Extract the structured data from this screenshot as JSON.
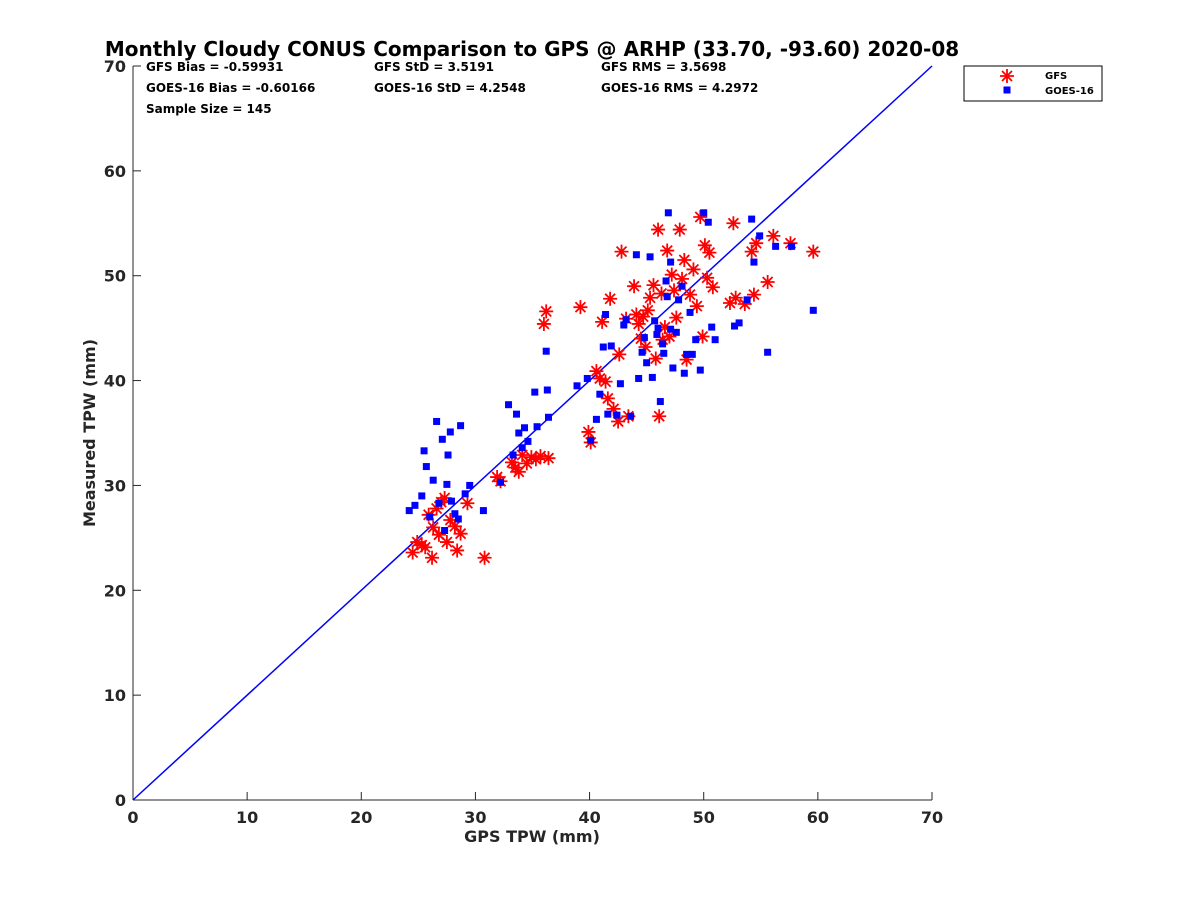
{
  "chart_data": {
    "type": "scatter",
    "title": "Monthly Cloudy CONUS Comparison to GPS @ ARHP (33.70, -93.60) 2020-08",
    "xlabel": "GPS TPW (mm)",
    "ylabel": "Measured TPW (mm)",
    "xlim": [
      0,
      70
    ],
    "ylim": [
      0,
      70
    ],
    "xticks": [
      0,
      10,
      20,
      30,
      40,
      50,
      60,
      70
    ],
    "yticks": [
      0,
      10,
      20,
      30,
      40,
      50,
      60,
      70
    ],
    "grid": false,
    "legend_position": "top-right",
    "stats": [
      "GFS Bias = -0.59931",
      "GFS StD = 3.5191",
      "GFS RMS = 3.5698",
      "GOES-16 Bias = -0.60166",
      "GOES-16 StD = 4.2548",
      "GOES-16 RMS = 4.2972",
      "Sample Size = 145"
    ],
    "reference_line": {
      "x": [
        0,
        70
      ],
      "y": [
        0,
        70
      ],
      "color": "#0000ff"
    },
    "series": [
      {
        "name": "GFS",
        "marker": "asterisk",
        "color": "#ff0000",
        "points": [
          [
            24.5,
            23.6
          ],
          [
            24.9,
            24.6
          ],
          [
            25.3,
            24.3
          ],
          [
            25.6,
            24.1
          ],
          [
            25.9,
            27.2
          ],
          [
            26.2,
            23.1
          ],
          [
            26.3,
            26.0
          ],
          [
            26.6,
            27.8
          ],
          [
            26.8,
            25.3
          ],
          [
            27.0,
            28.4
          ],
          [
            27.3,
            28.8
          ],
          [
            27.5,
            24.6
          ],
          [
            27.8,
            26.7
          ],
          [
            28.2,
            26.1
          ],
          [
            28.4,
            23.8
          ],
          [
            28.7,
            25.4
          ],
          [
            29.3,
            28.3
          ],
          [
            30.8,
            23.1
          ],
          [
            31.9,
            30.8
          ],
          [
            32.2,
            30.4
          ],
          [
            33.2,
            32.2
          ],
          [
            33.5,
            31.7
          ],
          [
            33.8,
            31.3
          ],
          [
            34.1,
            32.9
          ],
          [
            34.5,
            32.1
          ],
          [
            34.9,
            32.7
          ],
          [
            35.3,
            32.5
          ],
          [
            35.7,
            32.8
          ],
          [
            36.0,
            45.4
          ],
          [
            36.2,
            46.6
          ],
          [
            36.4,
            32.6
          ],
          [
            39.2,
            47.0
          ],
          [
            39.9,
            35.1
          ],
          [
            40.1,
            34.1
          ],
          [
            40.6,
            40.9
          ],
          [
            40.9,
            40.2
          ],
          [
            41.1,
            45.6
          ],
          [
            41.4,
            39.9
          ],
          [
            41.6,
            38.3
          ],
          [
            41.8,
            47.8
          ],
          [
            42.1,
            37.3
          ],
          [
            42.5,
            36.1
          ],
          [
            42.8,
            52.3
          ],
          [
            42.6,
            42.5
          ],
          [
            43.2,
            45.9
          ],
          [
            43.4,
            36.6
          ],
          [
            43.9,
            49.0
          ],
          [
            44.1,
            46.3
          ],
          [
            44.3,
            45.4
          ],
          [
            44.5,
            44.0
          ],
          [
            44.7,
            46.1
          ],
          [
            44.9,
            43.2
          ],
          [
            45.1,
            46.7
          ],
          [
            45.3,
            47.9
          ],
          [
            45.6,
            49.1
          ],
          [
            45.8,
            42.1
          ],
          [
            46.0,
            54.4
          ],
          [
            46.1,
            36.6
          ],
          [
            46.3,
            48.3
          ],
          [
            46.6,
            45.1
          ],
          [
            46.8,
            52.4
          ],
          [
            47.0,
            44.2
          ],
          [
            47.2,
            50.1
          ],
          [
            47.4,
            48.6
          ],
          [
            47.6,
            46.0
          ],
          [
            47.9,
            54.4
          ],
          [
            48.1,
            49.7
          ],
          [
            48.3,
            51.5
          ],
          [
            48.5,
            42.0
          ],
          [
            48.8,
            48.2
          ],
          [
            49.1,
            50.6
          ],
          [
            49.4,
            47.1
          ],
          [
            49.7,
            55.6
          ],
          [
            49.9,
            44.2
          ],
          [
            50.1,
            52.9
          ],
          [
            50.3,
            49.8
          ],
          [
            50.5,
            52.2
          ],
          [
            50.8,
            48.9
          ],
          [
            52.3,
            47.4
          ],
          [
            52.6,
            55.0
          ],
          [
            52.8,
            47.9
          ],
          [
            53.6,
            47.3
          ],
          [
            54.2,
            52.3
          ],
          [
            54.4,
            48.2
          ],
          [
            54.6,
            53.1
          ],
          [
            55.6,
            49.4
          ],
          [
            56.1,
            53.8
          ],
          [
            57.6,
            53.1
          ],
          [
            59.6,
            52.3
          ],
          [
            46.4,
            43.9
          ]
        ]
      },
      {
        "name": "GOES-16",
        "marker": "square",
        "color": "#0000ff",
        "points": [
          [
            24.2,
            27.6
          ],
          [
            24.7,
            28.1
          ],
          [
            25.3,
            29.0
          ],
          [
            25.5,
            33.3
          ],
          [
            25.7,
            31.8
          ],
          [
            26.0,
            27.0
          ],
          [
            26.3,
            30.5
          ],
          [
            26.6,
            36.1
          ],
          [
            26.8,
            28.3
          ],
          [
            27.1,
            34.4
          ],
          [
            27.3,
            25.7
          ],
          [
            27.5,
            30.1
          ],
          [
            27.8,
            35.1
          ],
          [
            27.6,
            32.9
          ],
          [
            27.9,
            28.5
          ],
          [
            28.2,
            27.3
          ],
          [
            28.5,
            26.8
          ],
          [
            28.7,
            35.7
          ],
          [
            29.1,
            29.2
          ],
          [
            29.5,
            30.0
          ],
          [
            30.7,
            27.6
          ],
          [
            32.2,
            30.3
          ],
          [
            32.9,
            37.7
          ],
          [
            33.3,
            32.9
          ],
          [
            33.6,
            36.8
          ],
          [
            33.8,
            35.0
          ],
          [
            34.1,
            33.6
          ],
          [
            34.3,
            35.5
          ],
          [
            34.6,
            34.2
          ],
          [
            35.2,
            38.9
          ],
          [
            35.4,
            35.6
          ],
          [
            36.2,
            42.8
          ],
          [
            36.3,
            39.1
          ],
          [
            36.4,
            36.5
          ],
          [
            38.9,
            39.5
          ],
          [
            39.8,
            40.2
          ],
          [
            40.1,
            34.3
          ],
          [
            40.6,
            36.3
          ],
          [
            40.9,
            38.7
          ],
          [
            41.2,
            43.2
          ],
          [
            41.4,
            46.3
          ],
          [
            41.6,
            36.8
          ],
          [
            41.9,
            43.3
          ],
          [
            42.4,
            36.7
          ],
          [
            42.7,
            39.7
          ],
          [
            43.0,
            45.3
          ],
          [
            43.2,
            45.8
          ],
          [
            43.6,
            36.6
          ],
          [
            44.1,
            52.0
          ],
          [
            44.3,
            40.2
          ],
          [
            44.6,
            42.7
          ],
          [
            44.8,
            44.1
          ],
          [
            45.0,
            41.7
          ],
          [
            45.3,
            51.8
          ],
          [
            45.5,
            40.3
          ],
          [
            45.7,
            45.7
          ],
          [
            46.0,
            45.0
          ],
          [
            46.2,
            38.0
          ],
          [
            46.5,
            42.6
          ],
          [
            46.7,
            49.5
          ],
          [
            46.9,
            56.0
          ],
          [
            47.1,
            51.3
          ],
          [
            47.3,
            41.2
          ],
          [
            47.6,
            44.6
          ],
          [
            47.8,
            47.7
          ],
          [
            48.1,
            49.0
          ],
          [
            48.3,
            40.7
          ],
          [
            48.5,
            42.5
          ],
          [
            48.8,
            46.5
          ],
          [
            49.0,
            42.5
          ],
          [
            49.3,
            43.9
          ],
          [
            49.7,
            41.0
          ],
          [
            50.0,
            56.0
          ],
          [
            50.4,
            55.1
          ],
          [
            50.7,
            45.1
          ],
          [
            51.0,
            43.9
          ],
          [
            52.7,
            45.2
          ],
          [
            53.1,
            45.5
          ],
          [
            53.8,
            47.7
          ],
          [
            54.2,
            55.4
          ],
          [
            54.4,
            51.3
          ],
          [
            54.9,
            53.8
          ],
          [
            55.6,
            42.7
          ],
          [
            56.3,
            52.8
          ],
          [
            57.7,
            52.8
          ],
          [
            59.6,
            46.7
          ],
          [
            46.4,
            43.5
          ],
          [
            45.9,
            44.4
          ],
          [
            47.1,
            44.9
          ],
          [
            46.8,
            48.0
          ]
        ]
      }
    ]
  }
}
